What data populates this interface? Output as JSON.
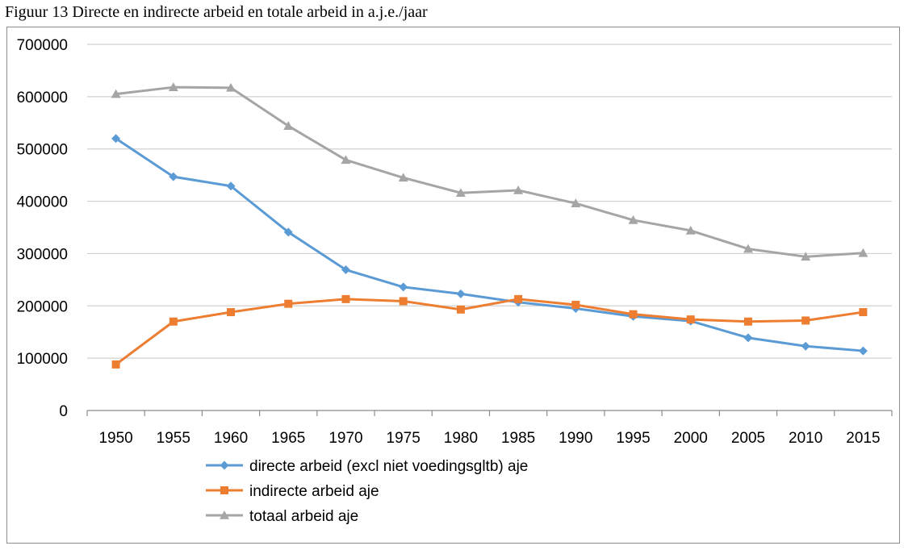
{
  "figure_title": "Figuur 13 Directe en indirecte arbeid en totale arbeid in a.j.e./jaar",
  "chart_data": {
    "type": "line",
    "title": "",
    "xlabel": "",
    "ylabel": "",
    "ylim": [
      0,
      700000
    ],
    "yticks": [
      "0",
      "100000",
      "200000",
      "300000",
      "400000",
      "500000",
      "600000",
      "700000"
    ],
    "categories": [
      "1950",
      "1955",
      "1960",
      "1965",
      "1970",
      "1975",
      "1980",
      "1985",
      "1990",
      "1995",
      "2000",
      "2005",
      "2010",
      "2015"
    ],
    "grid": "horizontal",
    "legend_position": "bottom-left",
    "series": [
      {
        "name": "directe arbeid (excl niet voedingsgltb) aje",
        "color": "#5b9bd5",
        "marker": "diamond",
        "values": [
          520000,
          447000,
          429000,
          341000,
          269000,
          236000,
          223000,
          207000,
          195000,
          180000,
          171000,
          139000,
          123000,
          114000
        ]
      },
      {
        "name": "indirecte arbeid aje",
        "color": "#ed7d31",
        "marker": "square",
        "values": [
          88000,
          170000,
          188000,
          204000,
          213000,
          209000,
          193000,
          213000,
          202000,
          184000,
          174000,
          170000,
          172000,
          188000
        ]
      },
      {
        "name": "totaal arbeid aje",
        "color": "#a5a5a5",
        "marker": "triangle",
        "values": [
          605000,
          618000,
          617000,
          544000,
          479000,
          445000,
          416000,
          421000,
          396000,
          364000,
          344000,
          309000,
          294000,
          301000
        ]
      }
    ]
  }
}
